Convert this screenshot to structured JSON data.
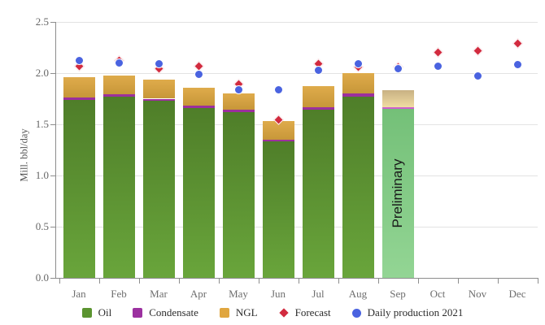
{
  "chart_data": {
    "type": "bar",
    "subtype": "stacked-columns-with-scatter-overlay",
    "title": "",
    "xlabel": "",
    "ylabel": "Mill. bbl/day",
    "ylim": [
      0,
      2.5
    ],
    "yticks": [
      0,
      0.5,
      1,
      1.5,
      2,
      2.5
    ],
    "grid": true,
    "legend_position": "bottom",
    "categories": [
      "Jan",
      "Feb",
      "Mar",
      "Apr",
      "May",
      "Jun",
      "Jul",
      "Aug",
      "Sep",
      "Oct",
      "Nov",
      "Dec"
    ],
    "bar_series": [
      {
        "name": "Oil",
        "values": [
          1.74,
          1.77,
          1.73,
          1.66,
          1.62,
          1.33,
          1.64,
          1.77,
          1.65,
          null,
          null,
          null
        ],
        "color_top": "#4F7E29",
        "color_bottom": "#69A53B",
        "legend_color": "#5B9430"
      },
      {
        "name": "Condensate",
        "values": [
          0.02,
          0.02,
          0.02,
          0.02,
          0.02,
          0.02,
          0.03,
          0.03,
          0.02,
          null,
          null,
          null
        ],
        "color_top": "#9C2F9D",
        "color_bottom": "#9C2F9D",
        "legend_color": "#9C31A0"
      },
      {
        "name": "NGL",
        "values": [
          0.2,
          0.19,
          0.19,
          0.18,
          0.16,
          0.18,
          0.2,
          0.2,
          0.16,
          null,
          null,
          null
        ],
        "color_top": "#DFAB4B",
        "color_bottom": "#C79739",
        "legend_color": "#E0A63F"
      }
    ],
    "preliminary": {
      "month": "Sep",
      "label": "Preliminary",
      "colors": {
        "Oil_top": "#74C078",
        "Oil_bottom": "#93D594",
        "Condensate": "#CC5FCE",
        "NGL_top": "#C8B183",
        "NGL_bottom": "#F0DCA2"
      }
    },
    "point_series": [
      {
        "name": "Forecast",
        "marker": "diamond",
        "color": "#D22B3F",
        "values": [
          2.07,
          2.12,
          2.04,
          2.07,
          1.89,
          1.54,
          2.09,
          2.06,
          2.06,
          2.2,
          2.22,
          2.29
        ]
      },
      {
        "name": "Daily production 2021",
        "marker": "circle",
        "color": "#4A63E0",
        "values": [
          2.12,
          2.1,
          2.09,
          1.99,
          1.84,
          1.84,
          2.03,
          2.09,
          2.04,
          2.07,
          1.97,
          2.08
        ]
      }
    ]
  }
}
